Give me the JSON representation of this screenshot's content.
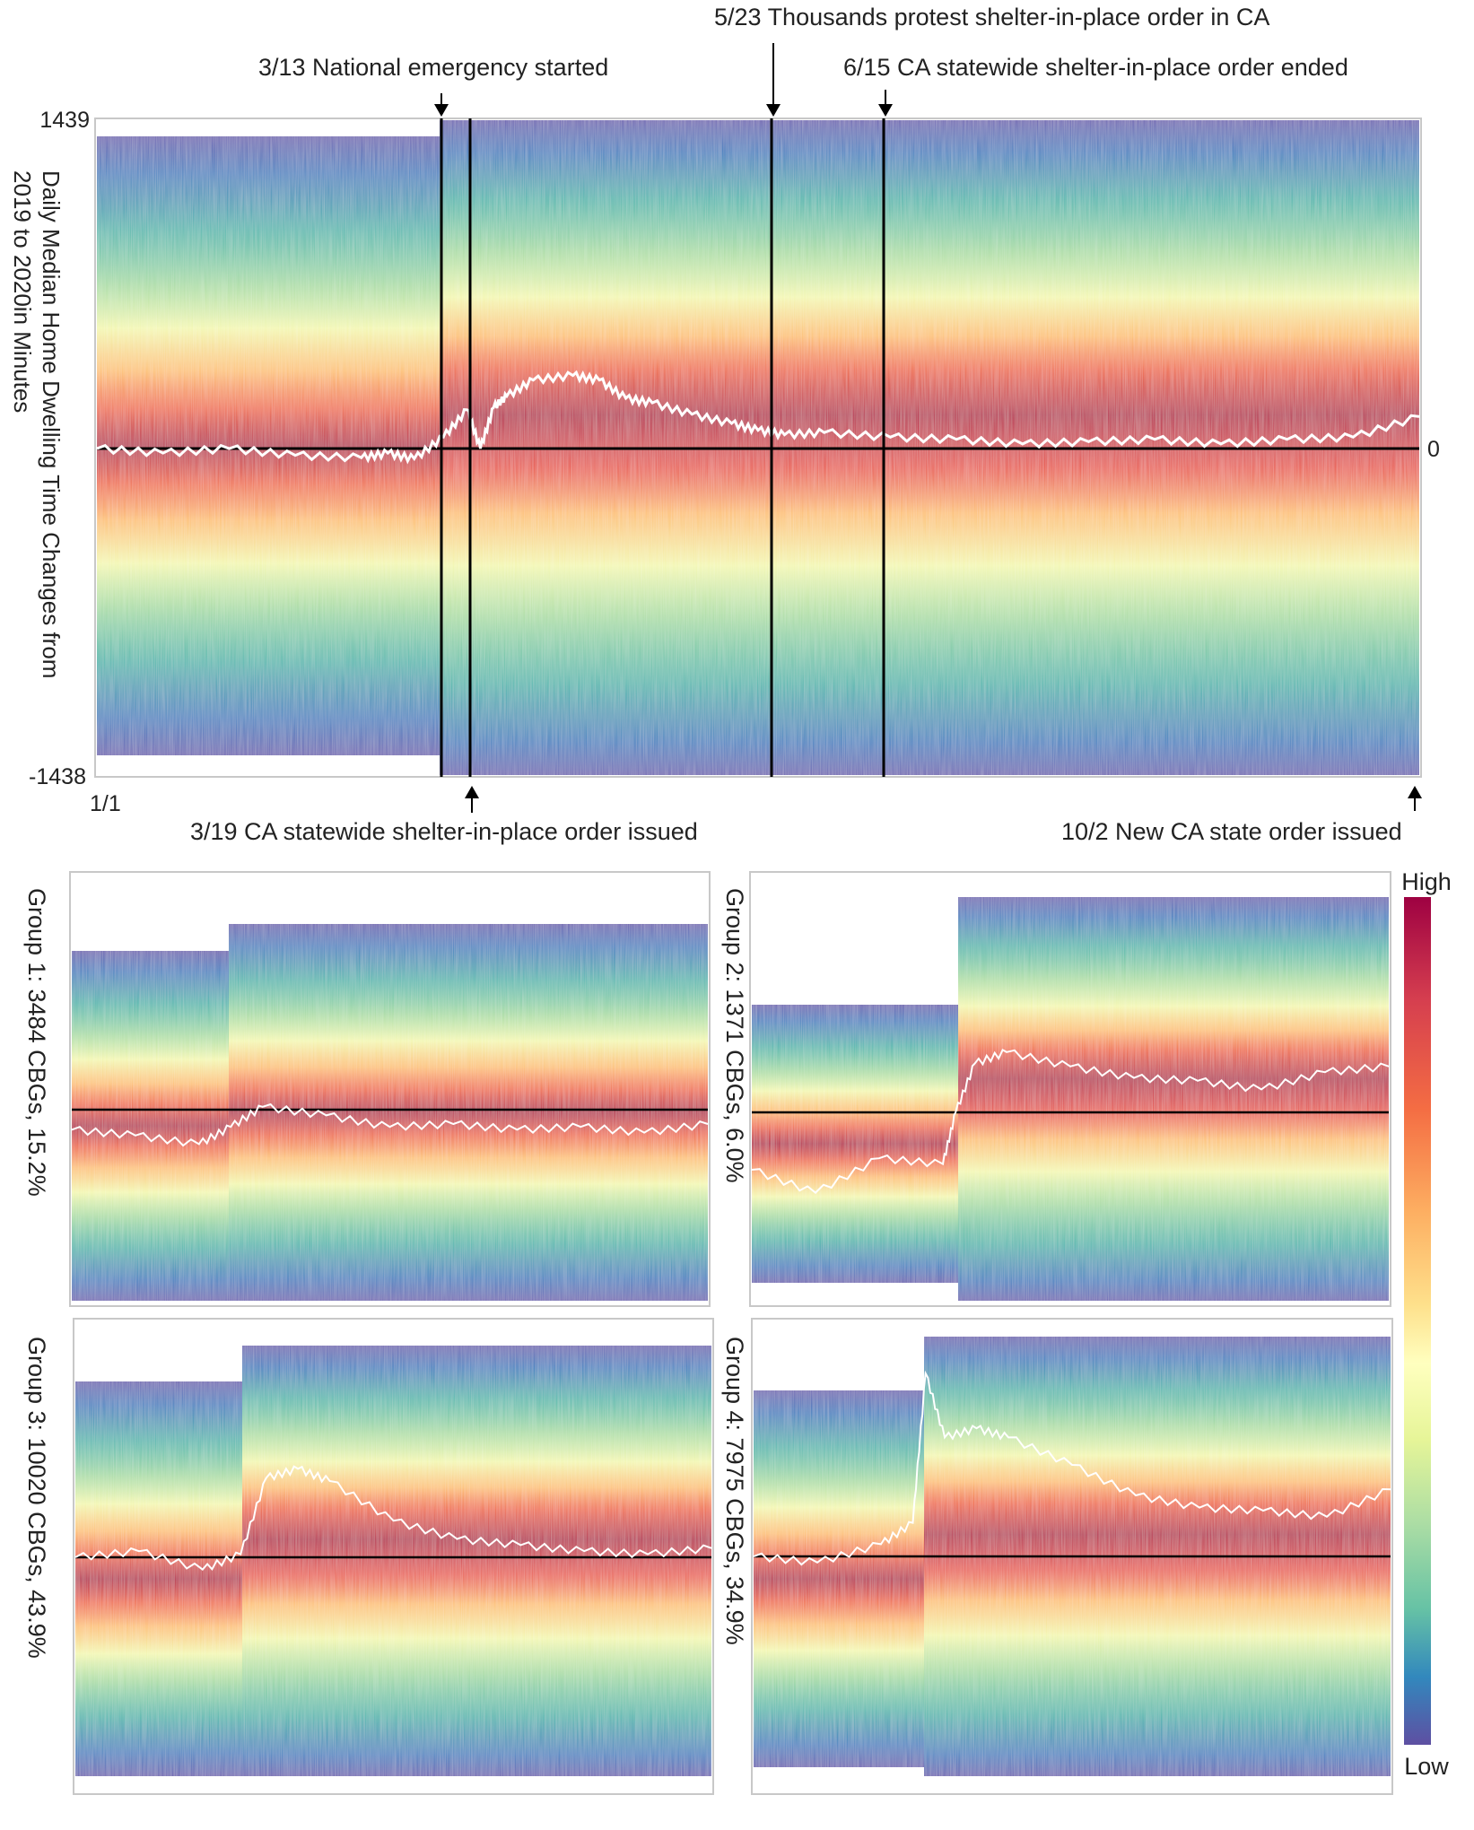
{
  "chart_data": [
    {
      "type": "area",
      "id": "main",
      "ylabel": [
        "Daily Median Home Dwelling Time Changes from",
        "2019 to 2020in Minutes"
      ],
      "xlim": [
        "1/1",
        "10/2"
      ],
      "ylim": [
        -1438,
        1439
      ],
      "y_tick_top": "1439",
      "y_tick_bottom": "-1438",
      "y_zero_label": "0",
      "x_tick_start": "1/1",
      "events": [
        {
          "date": "3/13",
          "label": "3/13 National emergency started",
          "position": "top"
        },
        {
          "date": "3/19",
          "label": "3/19 CA statewide shelter-in-place order issued",
          "position": "bottom"
        },
        {
          "date": "5/23",
          "label": "5/23 Thousands protest shelter-in-place order in CA",
          "position": "top"
        },
        {
          "date": "6/15",
          "label": "6/15 CA statewide shelter-in-place order ended",
          "position": "top"
        },
        {
          "date": "10/2",
          "label": "10/2 New CA state order issued",
          "position": "bottom"
        }
      ],
      "median_line": {
        "x": [
          0,
          0.05,
          0.1,
          0.15,
          0.2,
          0.22,
          0.24,
          0.262,
          0.28,
          0.29,
          0.3,
          0.31,
          0.33,
          0.36,
          0.38,
          0.4,
          0.42,
          0.45,
          0.48,
          0.5,
          0.52,
          0.55,
          0.6,
          0.65,
          0.7,
          0.75,
          0.8,
          0.85,
          0.9,
          0.95,
          1.0
        ],
        "y": [
          0,
          -20,
          0,
          -30,
          -40,
          -20,
          -45,
          50,
          170,
          0,
          180,
          230,
          300,
          320,
          300,
          220,
          200,
          150,
          110,
          80,
          60,
          70,
          50,
          40,
          20,
          30,
          40,
          20,
          40,
          50,
          140
        ]
      },
      "colorbar": {
        "high": "High",
        "low": "Low"
      }
    },
    {
      "type": "area",
      "id": "group1",
      "title": "Group 1: 3484 CBGs, 15.2%",
      "median_line": {
        "x": [
          0,
          0.1,
          0.2,
          0.25,
          0.3,
          0.4,
          0.5,
          0.6,
          0.7,
          0.8,
          0.9,
          1.0
        ],
        "y": [
          -70,
          -90,
          -120,
          -60,
          10,
          -20,
          -60,
          -50,
          -70,
          -60,
          -80,
          -50
        ]
      }
    },
    {
      "type": "area",
      "id": "group2",
      "title": "Group 2: 1371 CBGs, 6.0%",
      "median_line": {
        "x": [
          0,
          0.1,
          0.2,
          0.3,
          0.32,
          0.35,
          0.4,
          0.5,
          0.6,
          0.7,
          0.8,
          0.9,
          1.0
        ],
        "y": [
          -200,
          -280,
          -160,
          -180,
          0,
          170,
          210,
          160,
          120,
          110,
          80,
          140,
          160
        ]
      }
    },
    {
      "type": "area",
      "id": "group3",
      "title": "Group 3: 10020 CBGs, 43.9%",
      "median_line": {
        "x": [
          0,
          0.1,
          0.2,
          0.26,
          0.3,
          0.35,
          0.4,
          0.5,
          0.6,
          0.7,
          0.8,
          0.9,
          1.0
        ],
        "y": [
          0,
          20,
          -40,
          10,
          260,
          290,
          250,
          120,
          60,
          40,
          20,
          10,
          30
        ]
      }
    },
    {
      "type": "area",
      "id": "group4",
      "title": "Group 4: 7975 CBGs, 34.9%",
      "median_line": {
        "x": [
          0,
          0.1,
          0.2,
          0.25,
          0.27,
          0.3,
          0.35,
          0.4,
          0.5,
          0.6,
          0.7,
          0.8,
          0.9,
          1.0
        ],
        "y": [
          0,
          -20,
          40,
          110,
          600,
          390,
          420,
          390,
          300,
          200,
          160,
          150,
          130,
          220
        ]
      }
    }
  ]
}
